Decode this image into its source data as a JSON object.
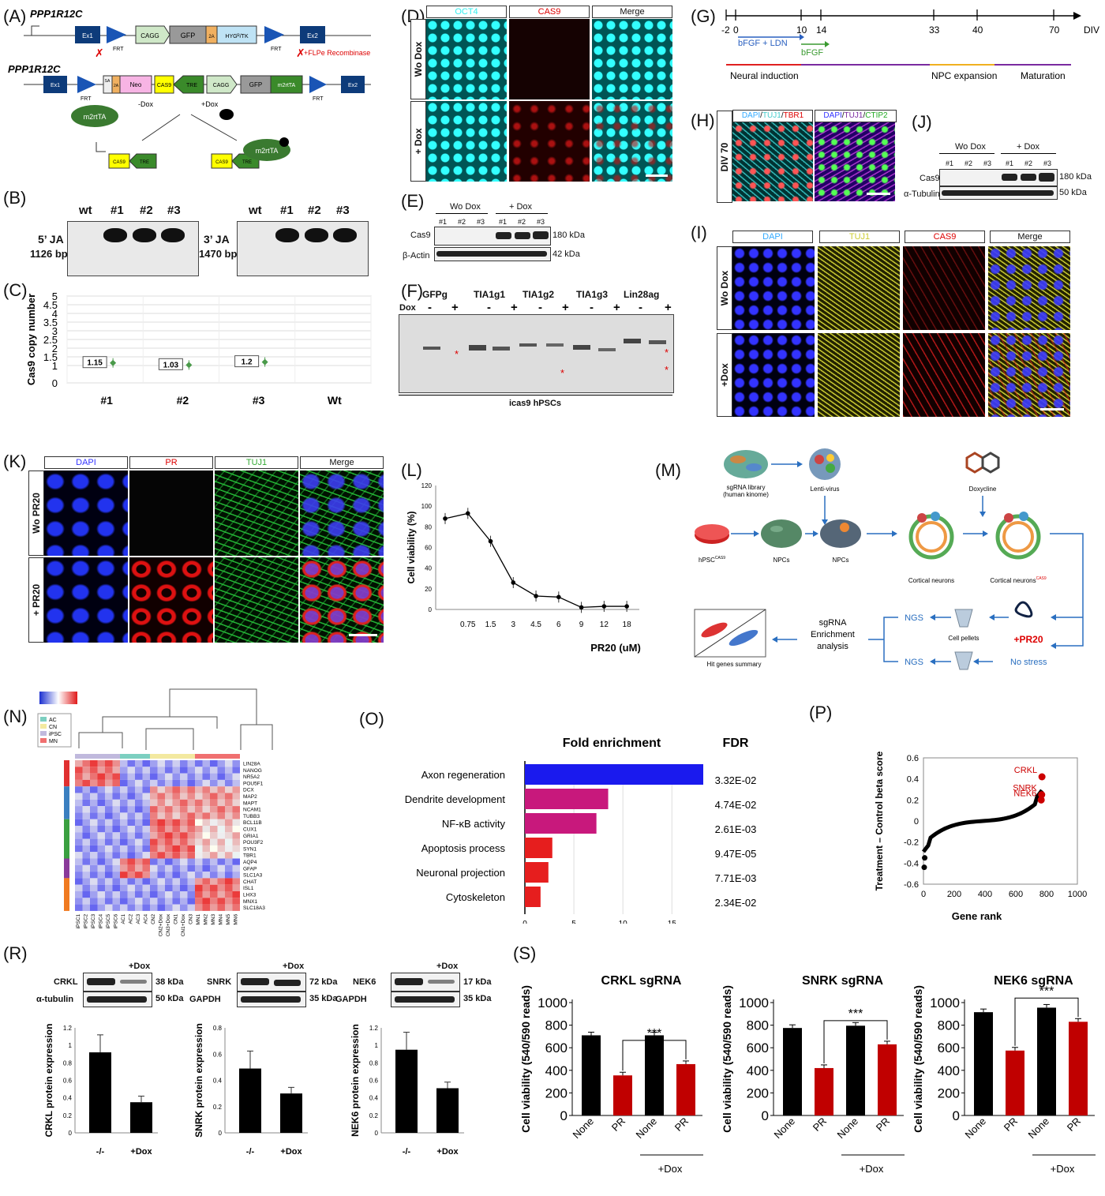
{
  "panels": {
    "A": "(A)",
    "B": "(B)",
    "C": "(C)",
    "D": "(D)",
    "E": "(E)",
    "F": "(F)",
    "G": "(G)",
    "H": "(H)",
    "I": "(I)",
    "J": "(J)",
    "K": "(K)",
    "L": "(L)",
    "M": "(M)",
    "N": "(N)",
    "O": "(O)",
    "P": "(P)",
    "R": "(R)",
    "S": "(S)"
  },
  "construct": {
    "gene": "PPP1R12C",
    "top": [
      "Ex1",
      "FRT",
      "CAGG",
      "GFP",
      "2A",
      "HYGᴿ/TK",
      "FRT",
      "Ex2"
    ],
    "flp": "+FLPe Recombinase",
    "bottom": [
      "Ex1",
      "FRT",
      "SA",
      "2A",
      "Neo",
      "CAS9",
      "TRE",
      "CAGG",
      "GFP",
      "m2rtTA",
      "FRT",
      "Ex2"
    ],
    "m2rtta": "m2rtTA",
    "minus_dox": "-Dox",
    "plus_dox": "+Dox",
    "cas9": "CAS9",
    "tre": "TRE"
  },
  "panel_b": {
    "lanes": [
      "wt",
      "#1",
      "#2",
      "#3"
    ],
    "five_ja": "5’ JA",
    "five_bp": "1126 bp",
    "three_ja": "3’ JA",
    "three_bp": "1470 bp"
  },
  "chart_data": [
    {
      "id": "C",
      "type": "scatter",
      "ylabel": "Cas9 copy number",
      "categories": [
        "#1",
        "#2",
        "#3",
        "Wt"
      ],
      "values": [
        1.15,
        1.03,
        1.2,
        null
      ],
      "labels": [
        "1.15",
        "1.03",
        "1.2",
        ""
      ],
      "ylim": [
        0,
        5
      ],
      "yticks": [
        "0",
        "1",
        "1.5",
        "2",
        "2.5",
        "3",
        "3.5",
        "4",
        "4.5",
        "5"
      ],
      "grid": true
    },
    {
      "id": "L",
      "type": "line",
      "ylabel": "Cell viability (%)",
      "xlabel": "PR20 (uM)",
      "categories": [
        "",
        "0.75",
        "1.5",
        "3",
        "4.5",
        "6",
        "9",
        "12",
        "18"
      ],
      "values": [
        88,
        93,
        66,
        26,
        13,
        12,
        2,
        3,
        3
      ],
      "ylim": [
        0,
        120
      ],
      "yticks": [
        "0",
        "20",
        "40",
        "60",
        "80",
        "100",
        "120"
      ]
    },
    {
      "id": "O",
      "type": "bar",
      "title": "Fold enrichment",
      "fdr_title": "FDR",
      "categories": [
        "Axon regeneration",
        "Dendrite development",
        "NF-κB activity",
        "Apoptosis process",
        "Neuronal projection",
        "Cytoskeleton"
      ],
      "values": [
        18.2,
        8.5,
        7.3,
        2.8,
        2.4,
        1.6
      ],
      "fdr": [
        "3.32E-02",
        "4.74E-02",
        "2.61E-03",
        "9.47E-05",
        "7.71E-03",
        "2.34E-02"
      ],
      "colors": [
        "#1a1aee",
        "#c8187c",
        "#c8187c",
        "#e61e1e",
        "#e61e1e",
        "#e61e1e"
      ],
      "xticks": [
        "0",
        "5",
        "10",
        "15"
      ],
      "xlim": [
        0,
        18.2
      ]
    },
    {
      "id": "P",
      "type": "scatter",
      "ylabel": "Treatment – Control beta score",
      "xlabel": "Gene rank",
      "xticks": [
        "0",
        "200",
        "400",
        "600",
        "800",
        "1000"
      ],
      "yticks": [
        "0.6",
        "0.4",
        "0.2",
        "0",
        "-0.2",
        "-0.4",
        "-0.6"
      ],
      "xlim": [
        0,
        1000
      ],
      "ylim": [
        -0.6,
        0.6
      ],
      "hits": [
        {
          "name": "CRKL",
          "x": 770,
          "y": 0.42
        },
        {
          "name": "SNRK",
          "x": 768,
          "y": 0.25
        },
        {
          "name": "NEK6",
          "x": 765,
          "y": 0.2
        }
      ]
    },
    {
      "id": "R1",
      "type": "bar",
      "ylabel": "CRKL protein expression",
      "categories": [
        "-/-",
        "+Dox"
      ],
      "values": [
        0.92,
        0.35
      ],
      "ylim": [
        0,
        1.2
      ],
      "yticks": [
        "0",
        "0.2",
        "0.4",
        "0.6",
        "0.8",
        "1",
        "1.2"
      ]
    },
    {
      "id": "R2",
      "type": "bar",
      "ylabel": "SNRK protein expression",
      "categories": [
        "-/-",
        "+Dox"
      ],
      "values": [
        0.49,
        0.3
      ],
      "ylim": [
        0,
        0.8
      ],
      "yticks": [
        "0",
        "0.2",
        "0.4",
        "0.6",
        "0.8"
      ]
    },
    {
      "id": "R3",
      "type": "bar",
      "ylabel": "NEK6 protein expression",
      "categories": [
        "-/-",
        "+Dox"
      ],
      "values": [
        0.95,
        0.51
      ],
      "ylim": [
        0,
        1.2
      ],
      "yticks": [
        "0",
        "0.2",
        "0.4",
        "0.6",
        "0.8",
        "1",
        "1.2"
      ]
    },
    {
      "id": "S1",
      "type": "bar",
      "title": "CRKL sgRNA",
      "ylabel": "Cell viability (540/590 reads)",
      "categories": [
        "None",
        "PR",
        "None",
        "PR"
      ],
      "values": [
        710,
        355,
        710,
        455
      ],
      "colors": [
        "#000",
        "#c00000",
        "#000",
        "#c00000"
      ],
      "ylim": [
        0,
        1000
      ],
      "yticks": [
        "0",
        "200",
        "400",
        "600",
        "800",
        "1000"
      ],
      "sig": "***",
      "group": "+Dox"
    },
    {
      "id": "S2",
      "type": "bar",
      "title": "SNRK sgRNA",
      "ylabel": "Cell viability (540/590 reads)",
      "categories": [
        "None",
        "PR",
        "None",
        "PR"
      ],
      "values": [
        775,
        420,
        795,
        630
      ],
      "colors": [
        "#000",
        "#c00000",
        "#000",
        "#c00000"
      ],
      "ylim": [
        0,
        1000
      ],
      "yticks": [
        "0",
        "200",
        "400",
        "600",
        "800",
        "1000"
      ],
      "sig": "***",
      "group": "+Dox"
    },
    {
      "id": "S3",
      "type": "bar",
      "title": "NEK6 sgRNA",
      "ylabel": "Cell viability (540/590 reads)",
      "categories": [
        "None",
        "PR",
        "None",
        "PR"
      ],
      "values": [
        915,
        575,
        955,
        830
      ],
      "colors": [
        "#000",
        "#c00000",
        "#000",
        "#c00000"
      ],
      "ylim": [
        0,
        1000
      ],
      "yticks": [
        "0",
        "200",
        "400",
        "600",
        "800",
        "1000"
      ],
      "sig": "***",
      "group": "+Dox"
    }
  ],
  "panel_d": {
    "oct4": "OCT4",
    "cas9": "CAS9",
    "merge": "Merge",
    "wo": "Wo Dox",
    "plus": "+ Dox"
  },
  "panel_e": {
    "wo": "Wo Dox",
    "plus": "+ Dox",
    "lanes": [
      "#1",
      "#2",
      "#3",
      "#1",
      "#2",
      "#3"
    ],
    "cas9": "Cas9",
    "actin": "β-Actin",
    "kda1": "180 kDa",
    "kda2": "42 kDa"
  },
  "panel_f": {
    "guides": [
      "GFPg",
      "TIA1g1",
      "TIA1g2",
      "TIA1g3",
      "Lin28ag"
    ],
    "dox": "Dox",
    "minus": "-",
    "plus": "+",
    "caption": "icas9 hPSCs"
  },
  "panel_g": {
    "ticks": [
      "-2",
      "0",
      "10",
      "14",
      "33",
      "40",
      "70"
    ],
    "div": "DIV",
    "bfgf_ldn": "bFGF + LDN",
    "bfgf": "bFGF",
    "stages": [
      "Neural induction",
      "NPC expansion",
      "Maturation"
    ]
  },
  "panel_h": {
    "div70": "DIV 70",
    "dapi": "DAPI",
    "tuj1": "TUJ1",
    "tbr1": "TBR1",
    "ctip2": "CTIP2"
  },
  "panel_j": {
    "wo": "Wo Dox",
    "plus": "+ Dox",
    "lanes": [
      "#1",
      "#2",
      "#3",
      "#1",
      "#2",
      "#3"
    ],
    "cas9": "Cas9",
    "tub": "α-Tubulin",
    "kda1": "180 kDa",
    "kda2": "50 kDa"
  },
  "panel_i": {
    "dapi": "DAPI",
    "tuj1": "TUJ1",
    "cas9": "CAS9",
    "merge": "Merge",
    "wo": "Wo Dox",
    "plus": "+Dox"
  },
  "panel_k": {
    "dapi": "DAPI",
    "pr": "PR",
    "tuj1": "TUJ1",
    "merge": "Merge",
    "wo": "Wo PR20",
    "plus": "+ PR20"
  },
  "panel_m": {
    "sgrna": "sgRNA library\n(human kinome)",
    "lenti": "Lenti-virus",
    "dox": "Doxycline",
    "hpsc": "hPSC",
    "hpsc_sup": "CAS9",
    "npcs1": "NPCs",
    "npcs2": "NPCs",
    "cortical": "Cortical neurons",
    "cortical_cas9": "Cortical neurons",
    "cas9_sup": "CAS9",
    "ngs1": "NGS",
    "ngs2": "NGS",
    "pellets": "Cell pellets",
    "pr20": "+PR20",
    "nostress": "No stress",
    "enrich": "sgRNA\nEnrichment\nanalysis",
    "hits": "Hit genes summary"
  },
  "panel_n": {
    "legend": [
      "AC",
      "CN",
      "iPSC",
      "MN"
    ],
    "genes": [
      "LIN28A",
      "NANOG",
      "NR5A2",
      "POU5F1",
      "DCX",
      "MAP2",
      "MAPT",
      "NCAM1",
      "TUBB3",
      "BCL11B",
      "CUX1",
      "GRIA1",
      "POU3F2",
      "SYN1",
      "TBR1",
      "AQP4",
      "GFAP",
      "SLC1A3",
      "CHAT",
      "ISL1",
      "LHX3",
      "MNX1",
      "SLC18A3"
    ],
    "samples": [
      "iPSC1",
      "iPSC2",
      "iPSC3",
      "iPSC4",
      "iPSC5",
      "iPSC6",
      "AC1",
      "AC2",
      "AC3",
      "AC4",
      "CN2",
      "CN2+Dox",
      "CN3+Dox",
      "CN1",
      "CN1+Dox",
      "CN3",
      "MN1",
      "MN2",
      "MN3",
      "MN4",
      "MN5",
      "MN6"
    ]
  },
  "panel_r": {
    "plus_dox": "+Dox",
    "blots": [
      {
        "target": "CRKL",
        "kda": "38 kDa",
        "ctrl": "α-tubulin",
        "ctrl_kda": "50 kDa"
      },
      {
        "target": "SNRK",
        "kda": "72 kDa",
        "ctrl": "GAPDH",
        "ctrl_kda": "35 kDa"
      },
      {
        "target": "NEK6",
        "kda": "17 kDa",
        "ctrl": "GAPDH",
        "ctrl_kda": "35 kDa"
      }
    ]
  }
}
